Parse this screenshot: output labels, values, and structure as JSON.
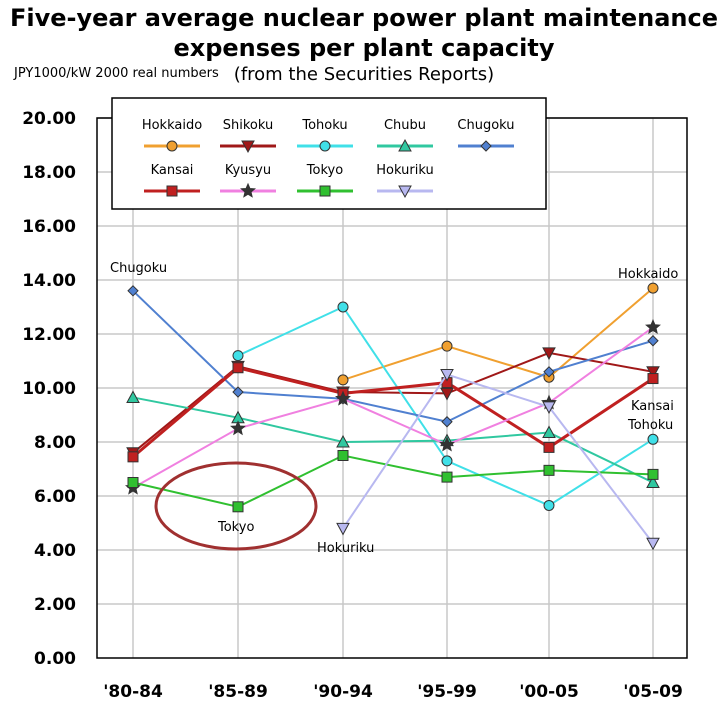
{
  "chart_data": {
    "type": "line",
    "title": "Five-year average nuclear power plant maintenance",
    "title_line2": "expenses per plant capacity",
    "subtitle": "(from the Securities Reports)",
    "ylabel": "JPY1000/kW 2000 real numbers",
    "categories": [
      "'80-84",
      "'85-89",
      "'90-94",
      "'95-99",
      "'00-05",
      "'05-09"
    ],
    "ylim": [
      0,
      20
    ],
    "yticks": [
      "0.00",
      "2.00",
      "4.00",
      "6.00",
      "8.00",
      "10.00",
      "12.00",
      "14.00",
      "16.00",
      "18.00",
      "20.00"
    ],
    "grid": true,
    "legend_position": "top-left",
    "series": [
      {
        "name": "Hokkaido",
        "color": "#f0a030",
        "marker": "circle",
        "values": [
          null,
          null,
          10.3,
          11.55,
          10.4,
          13.7
        ]
      },
      {
        "name": "Shikoku",
        "color": "#a01818",
        "marker": "triangle-down",
        "values": [
          7.6,
          10.8,
          9.85,
          9.8,
          11.3,
          10.6
        ]
      },
      {
        "name": "Tohoku",
        "color": "#40e0e8",
        "marker": "circle",
        "values": [
          null,
          11.2,
          13.0,
          7.3,
          5.65,
          8.1
        ]
      },
      {
        "name": "Chubu",
        "color": "#30c8a0",
        "marker": "triangle-up",
        "values": [
          9.65,
          8.9,
          8.0,
          8.05,
          8.35,
          6.5
        ]
      },
      {
        "name": "Chugoku",
        "color": "#5080d0",
        "marker": "diamond",
        "values": [
          13.6,
          9.85,
          9.6,
          8.75,
          10.6,
          11.75
        ]
      },
      {
        "name": "Kansai",
        "color": "#c02020",
        "marker": "square",
        "values": [
          7.45,
          10.75,
          9.8,
          10.2,
          7.8,
          10.35
        ]
      },
      {
        "name": "Kyusyu",
        "color": "#f080e0",
        "marker": "star",
        "values": [
          6.3,
          8.5,
          9.6,
          7.9,
          9.45,
          12.25
        ]
      },
      {
        "name": "Tokyo",
        "color": "#30c030",
        "marker": "square",
        "values": [
          6.5,
          5.6,
          7.5,
          6.7,
          6.95,
          6.8
        ]
      },
      {
        "name": "Hokuriku",
        "color": "#b8b8f0",
        "marker": "triangle-down",
        "values": [
          null,
          null,
          4.8,
          10.5,
          9.3,
          4.25
        ]
      }
    ],
    "annotations": [
      "Chugoku",
      "Hokkaido",
      "Kansai",
      "Tohoku",
      "Tokyo",
      "Hokuriku"
    ]
  }
}
